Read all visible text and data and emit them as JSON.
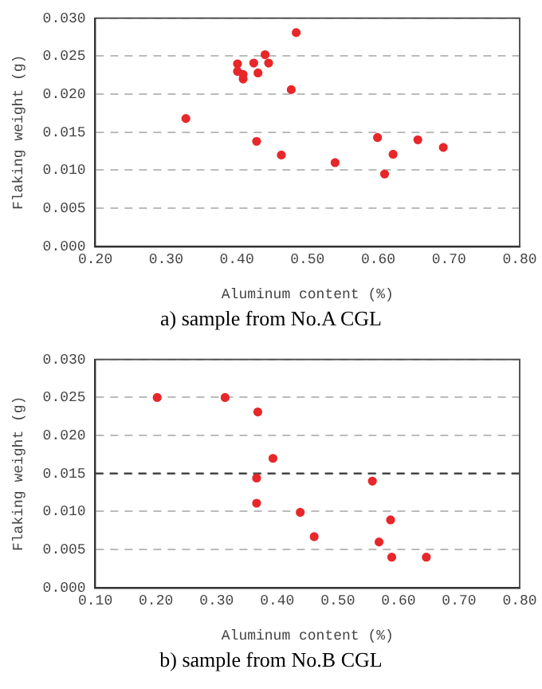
{
  "chart_data": [
    {
      "type": "scatter",
      "xlabel": "Aluminum content (%)",
      "ylabel": "Flaking weight (g)",
      "annotations": [
        "a)  sample  from  No.A  CGL"
      ],
      "xlim": [
        0.2,
        0.8
      ],
      "xticks": [
        {
          "value": 0.2,
          "label": "0.20"
        },
        {
          "value": 0.3,
          "label": "0.30"
        },
        {
          "value": 0.4,
          "label": "0.40"
        },
        {
          "value": 0.5,
          "label": "0.50"
        },
        {
          "value": 0.6,
          "label": "0.60"
        },
        {
          "value": 0.7,
          "label": "0.70"
        },
        {
          "value": 0.8,
          "label": "0.80"
        }
      ],
      "ylim": [
        0,
        0.03
      ],
      "yticks": [
        {
          "value": 0,
          "label": "0.000"
        },
        {
          "value": 0.005,
          "label": "0.005"
        },
        {
          "value": 0.01,
          "label": "0.010"
        },
        {
          "value": 0.015,
          "label": "0.015"
        },
        {
          "value": 0.02,
          "label": "0.020"
        },
        {
          "value": 0.025,
          "label": "0.025"
        },
        {
          "value": 0.03,
          "label": "0.030"
        }
      ],
      "grid": "y",
      "marker": "circle",
      "legend": false,
      "series": [
        {
          "color": "#e8272a",
          "x": [
            0.328,
            0.401,
            0.401,
            0.409,
            0.409,
            0.424,
            0.43,
            0.44,
            0.445,
            0.428,
            0.463,
            0.477,
            0.484,
            0.539,
            0.599,
            0.609,
            0.621,
            0.656,
            0.692
          ],
          "values": [
            0.0168,
            0.024,
            0.023,
            0.0226,
            0.022,
            0.0241,
            0.0228,
            0.0252,
            0.0241,
            0.0138,
            0.012,
            0.0206,
            0.0281,
            0.011,
            0.0143,
            0.0095,
            0.0121,
            0.014,
            0.013
          ]
        }
      ]
    },
    {
      "type": "scatter",
      "xlabel": "Aluminum content (%)",
      "ylabel": "Flaking weight (g)",
      "annotations": [
        "b)  sample  from  No.B  CGL"
      ],
      "xlim": [
        0.1,
        0.8
      ],
      "xticks": [
        {
          "value": 0.1,
          "label": "0.10"
        },
        {
          "value": 0.2,
          "label": "0.20"
        },
        {
          "value": 0.3,
          "label": "0.30"
        },
        {
          "value": 0.4,
          "label": "0.40"
        },
        {
          "value": 0.5,
          "label": "0.50"
        },
        {
          "value": 0.6,
          "label": "0.60"
        },
        {
          "value": 0.7,
          "label": "0.70"
        },
        {
          "value": 0.8,
          "label": "0.80"
        }
      ],
      "ylim": [
        0,
        0.03
      ],
      "yticks": [
        {
          "value": 0,
          "label": "0.000"
        },
        {
          "value": 0.005,
          "label": "0.005"
        },
        {
          "value": 0.01,
          "label": "0.010"
        },
        {
          "value": 0.015,
          "label": "0.015"
        },
        {
          "value": 0.02,
          "label": "0.020"
        },
        {
          "value": 0.025,
          "label": "0.025"
        },
        {
          "value": 0.03,
          "label": "0.030"
        }
      ],
      "grid": "y",
      "marker": "circle",
      "legend": false,
      "ref_lines": [
        {
          "axis": "y",
          "value": 0.015,
          "color": "#444444",
          "line_style": "dashed"
        }
      ],
      "series": [
        {
          "color": "#e8272a",
          "x": [
            0.202,
            0.314,
            0.368,
            0.393,
            0.366,
            0.366,
            0.438,
            0.461,
            0.557,
            0.587,
            0.568,
            0.589,
            0.646
          ],
          "values": [
            0.025,
            0.025,
            0.0231,
            0.017,
            0.0144,
            0.0111,
            0.0099,
            0.0067,
            0.014,
            0.0089,
            0.006,
            0.004,
            0.004
          ]
        }
      ]
    }
  ]
}
